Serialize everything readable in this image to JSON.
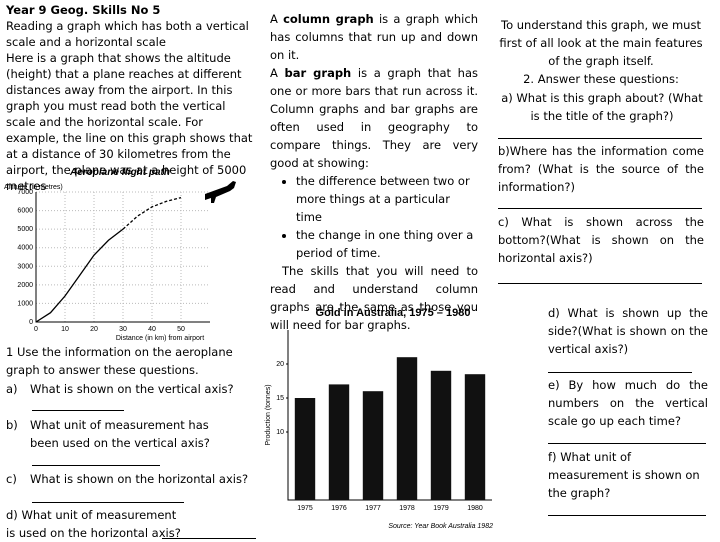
{
  "header": {
    "title": "Year 9 Geog. Skills No 5",
    "subtitle": "Reading a graph which has both a vertical scale and a horizontal scale"
  },
  "intro": "Here is a graph that shows the altitude (height) that a plane reaches at different distances away from the airport. In this graph you must read both the vertical scale and the horizontal scale. For example, the line on this graph shows that at a distance of 30 kilometres from the airport, the plane was at a height of 5000 metres",
  "definitions": {
    "column": [
      "A ",
      "column graph",
      " is a graph which has columns that run up and down on it."
    ],
    "bar": [
      "A ",
      "bar graph",
      " is a graph that has one or more bars that run across it. Column graphs and bar graphs are often used in geography to compare things. They are very good at showing:"
    ],
    "bullets": [
      "the difference between two or more things at a particular time",
      "the change in one thing over a period of time."
    ],
    "skills": "The skills that you will need to read and understand column graphs are the same as those you will need for bar graphs."
  },
  "questions_1": {
    "intro": "1 Use the information on the aeroplane graph to answer these questions.",
    "items": [
      {
        "label": "a)",
        "text": "What is shown on the vertical axis?"
      },
      {
        "label": "b)",
        "text": "What unit of measurement has been used on the vertical axis?"
      },
      {
        "label": "c)",
        "text": "What is shown on the horizontal axis?"
      },
      {
        "label": "d)",
        "text": "What unit of measurement is used on the horizontal axis?"
      }
    ]
  },
  "questions_2": {
    "intro": "To understand this graph, we must first of all look at the main features of the graph itself.",
    "heading": "2. Answer these questions:",
    "items": [
      "a) What is this graph about? (What is the title of the graph?)",
      "b)Where has the information come from? (What is the source of the information?)",
      "c) What is shown across the bottom?(What is shown on the horizontal axis?)",
      "d) What is shown up the side?(What is shown on the vertical axis?)",
      "e) By how much do the numbers on the vertical scale go up each time?",
      "f) What unit of measurement is shown on the graph?"
    ]
  },
  "chart_data": [
    {
      "type": "line",
      "title": "Aeroplane flight path",
      "y_label": "Altitude (in metres)",
      "x_label": "Distance (in km) from airport",
      "color": "#000000",
      "series": [
        {
          "style": "solid",
          "x": [
            0,
            5,
            10,
            15,
            20,
            25,
            30
          ],
          "values": [
            0,
            500,
            1400,
            2500,
            3600,
            4400,
            5000
          ]
        },
        {
          "style": "dashed",
          "x": [
            30,
            35,
            40,
            45,
            50
          ],
          "values": [
            5000,
            5700,
            6200,
            6500,
            6700
          ]
        }
      ],
      "xlim": [
        0,
        60
      ],
      "xticks": [
        0,
        10,
        20,
        30,
        40,
        50
      ],
      "ylim": [
        0,
        7000
      ],
      "yticks": [
        0,
        1000,
        2000,
        3000,
        4000,
        5000,
        6000,
        7000
      ],
      "grid": true
    },
    {
      "type": "bar",
      "title": "Gold in Australia, 1975 – 1980",
      "y_label": "Production (tonnes)",
      "source": "Source: Year Book Australia 1982",
      "color": "#111111",
      "categories": [
        "1975",
        "1976",
        "1977",
        "1978",
        "1979",
        "1980"
      ],
      "values": [
        15,
        17,
        16,
        21,
        19,
        18.5
      ],
      "ylim": [
        0,
        25
      ],
      "yticks": [
        10,
        15,
        20
      ],
      "grid": false
    }
  ]
}
